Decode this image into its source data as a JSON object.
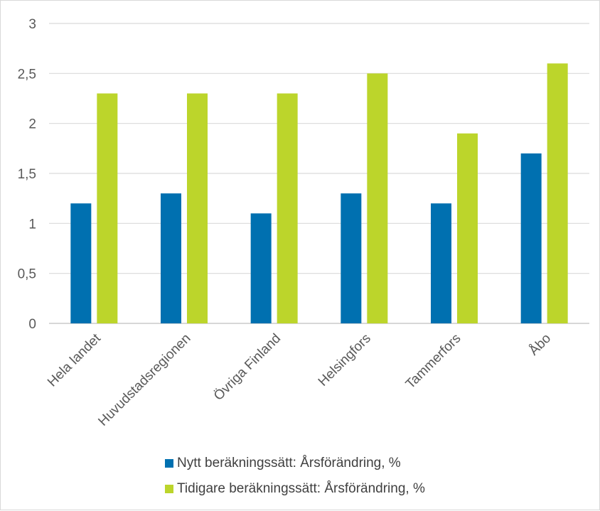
{
  "chart_data": {
    "type": "bar",
    "title": "",
    "xlabel": "",
    "ylabel": "",
    "categories": [
      "Hela landet",
      "Huvudstadsregionen",
      "Övriga Finland",
      "Helsingfors",
      "Tammerfors",
      "Åbo"
    ],
    "series": [
      {
        "name": "Nytt beräkningssätt: Årsförändring, %",
        "values": [
          1.2,
          1.3,
          1.1,
          1.3,
          1.2,
          1.7
        ],
        "color": "#0070b0"
      },
      {
        "name": "Tidigare beräkningssätt: Årsförändring, %",
        "values": [
          2.3,
          2.3,
          2.3,
          2.5,
          1.9,
          2.6
        ],
        "color": "#bcd52b"
      }
    ],
    "ylim": [
      0,
      3
    ],
    "yticks": [
      0,
      0.5,
      1,
      1.5,
      2,
      2.5,
      3
    ],
    "ytick_labels": [
      "0",
      "0,5",
      "1",
      "1,5",
      "2",
      "2,5",
      "3"
    ],
    "grid": true,
    "legend_position": "bottom"
  }
}
